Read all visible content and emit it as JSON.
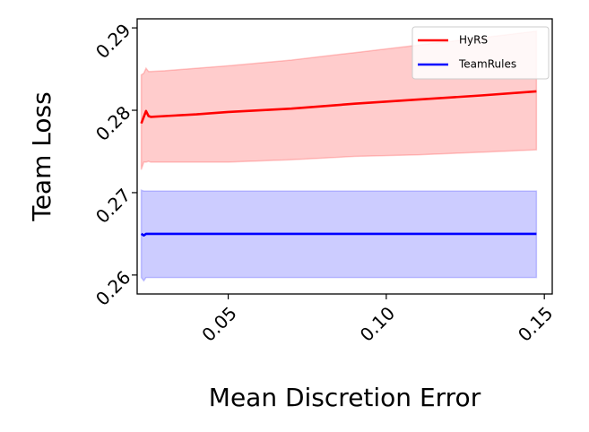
{
  "chart_data": {
    "type": "line",
    "xlabel": "Mean Discretion Error",
    "ylabel": "Team Loss",
    "xlim": [
      0.0212,
      0.1525
    ],
    "ylim": [
      0.2577,
      0.2911
    ],
    "xticks": [
      0.05,
      0.1,
      0.15
    ],
    "xtick_labels": [
      "0.05",
      "0.10",
      "0.15"
    ],
    "yticks": [
      0.26,
      0.27,
      0.28,
      0.29
    ],
    "ytick_labels": [
      "0.26",
      "0.27",
      "0.28",
      "0.29"
    ],
    "grid": false,
    "legend_position": "top-right",
    "series": [
      {
        "name": "HyRS",
        "color": "#ff0000",
        "fill_color": "#ff0000",
        "x": [
          0.0225,
          0.0233,
          0.024,
          0.0248,
          0.0255,
          0.03,
          0.04,
          0.05,
          0.07,
          0.09,
          0.11,
          0.13,
          0.1475
        ],
        "y": [
          0.2784,
          0.2792,
          0.2799,
          0.2793,
          0.2792,
          0.2793,
          0.2795,
          0.2798,
          0.2802,
          0.2808,
          0.2813,
          0.2818,
          0.2823
        ],
        "lower": [
          0.2728,
          0.2737,
          0.2737,
          0.2738,
          0.2737,
          0.2737,
          0.2737,
          0.2737,
          0.274,
          0.2744,
          0.2746,
          0.2749,
          0.2752
        ],
        "upper": [
          0.2843,
          0.2845,
          0.2851,
          0.2847,
          0.2847,
          0.2848,
          0.2851,
          0.2854,
          0.2861,
          0.287,
          0.2879,
          0.2888,
          0.2896
        ]
      },
      {
        "name": "TeamRules",
        "color": "#0000ff",
        "fill_color": "#0000ff",
        "x": [
          0.0225,
          0.0233,
          0.024,
          0.0248,
          0.0255,
          0.05,
          0.1,
          0.1475
        ],
        "y": [
          0.265,
          0.2648,
          0.265,
          0.265,
          0.265,
          0.265,
          0.265,
          0.265
        ],
        "lower": [
          0.2597,
          0.2593,
          0.2597,
          0.2597,
          0.2597,
          0.2597,
          0.2597,
          0.2597
        ],
        "upper": [
          0.2703,
          0.2702,
          0.2702,
          0.2702,
          0.2702,
          0.2702,
          0.2702,
          0.2702
        ]
      }
    ]
  }
}
